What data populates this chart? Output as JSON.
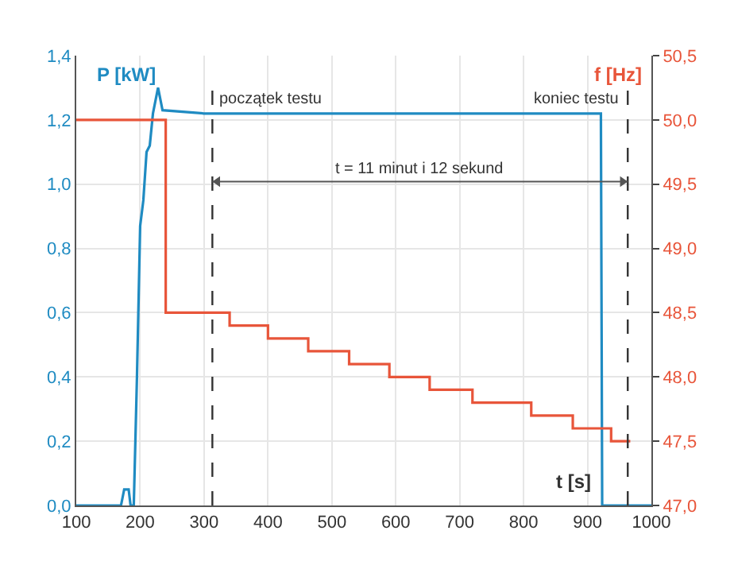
{
  "chart_data": {
    "type": "line",
    "xlabel": "t [s]",
    "ylabel": "P [kW]",
    "y2label": "f [Hz]",
    "series": [
      {
        "color": "#1f8bc2",
        "x": [
          100,
          170,
          175,
          182,
          185,
          190,
          195,
          200,
          205,
          210,
          215,
          220,
          228,
          235,
          300,
          600,
          900,
          921,
          923,
          1000
        ],
        "values": [
          0,
          0,
          0.05,
          0.05,
          0,
          0,
          0.4,
          0.87,
          0.95,
          1.1,
          1.12,
          1.22,
          1.3,
          1.23,
          1.22,
          1.22,
          1.22,
          1.22,
          0,
          0
        ]
      },
      {
        "type": "step",
        "axis": "y2",
        "color": "#e8553a",
        "x": [
          100,
          240,
          340,
          400,
          463,
          527,
          590,
          653,
          720,
          812,
          877,
          937,
          967
        ],
        "values": [
          50.0,
          48.5,
          48.4,
          48.3,
          48.2,
          48.1,
          48.0,
          47.9,
          47.8,
          47.7,
          47.6,
          47.5,
          47.5
        ]
      }
    ],
    "xlim": [
      100,
      1000
    ],
    "xticks": [
      100,
      200,
      300,
      400,
      500,
      600,
      700,
      800,
      900,
      1000
    ],
    "ylim": [
      0,
      1.4
    ],
    "yticks": [
      {
        "value": 0,
        "label": "0,0"
      },
      {
        "value": 0.2,
        "label": "0,2"
      },
      {
        "value": 0.4,
        "label": "0,4"
      },
      {
        "value": 0.6,
        "label": "0,6"
      },
      {
        "value": 0.8,
        "label": "0,8"
      },
      {
        "value": 1.0,
        "label": "1,0"
      },
      {
        "value": 1.2,
        "label": "1,2"
      },
      {
        "value": 1.4,
        "label": "1,4"
      }
    ],
    "y2lim": [
      47.0,
      50.5
    ],
    "y2ticks": [
      {
        "value": 47.0,
        "label": "47,0"
      },
      {
        "value": 47.5,
        "label": "47,5"
      },
      {
        "value": 48.0,
        "label": "48,0"
      },
      {
        "value": 48.5,
        "label": "48,5"
      },
      {
        "value": 49.0,
        "label": "49,0"
      },
      {
        "value": 49.5,
        "label": "49,5"
      },
      {
        "value": 50.0,
        "label": "50,0"
      },
      {
        "value": 50.5,
        "label": "50,5"
      }
    ],
    "ref_lines": [
      {
        "axis": "x",
        "value": 313,
        "label": "początek testu",
        "line_style": "dashed",
        "color": "#333333"
      },
      {
        "axis": "x",
        "value": 963,
        "label": "koniec testu",
        "line_style": "dashed",
        "color": "#333333"
      }
    ],
    "annotations": [
      "t = 11 minut i 12 sekund"
    ],
    "grid": true,
    "legend": false
  }
}
